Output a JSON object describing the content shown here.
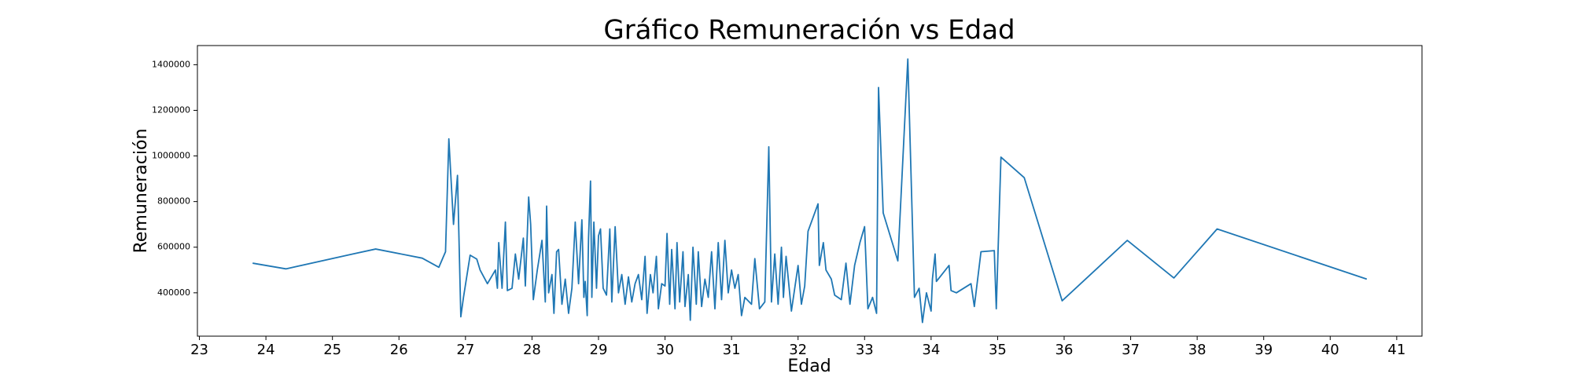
{
  "chart_data": {
    "type": "line",
    "title": "Gráfico Remuneración vs Edad",
    "x_label": "Edad",
    "y_label": "Remuneración",
    "color": "#1f77b4",
    "xlim": [
      22.97,
      41.38
    ],
    "ylim": [
      210000,
      1484000
    ],
    "xticks": [
      23,
      24,
      25,
      26,
      27,
      28,
      29,
      30,
      31,
      32,
      33,
      34,
      35,
      36,
      37,
      38,
      39,
      40,
      41
    ],
    "yticks": [
      400000,
      600000,
      800000,
      1000000,
      1200000,
      1400000
    ],
    "x": [
      23.8,
      24.3,
      25.3,
      25.65,
      26.35,
      26.6,
      26.7,
      26.75,
      26.82,
      26.88,
      26.93,
      26.97,
      27.07,
      27.17,
      27.22,
      27.33,
      27.45,
      27.48,
      27.5,
      27.55,
      27.6,
      27.63,
      27.7,
      27.75,
      27.8,
      27.87,
      27.9,
      27.95,
      27.98,
      28.02,
      28.08,
      28.15,
      28.2,
      28.22,
      28.25,
      28.3,
      28.33,
      28.37,
      28.4,
      28.45,
      28.5,
      28.55,
      28.6,
      28.65,
      28.7,
      28.75,
      28.78,
      28.8,
      28.83,
      28.85,
      28.88,
      28.9,
      28.93,
      28.97,
      29.0,
      29.03,
      29.07,
      29.12,
      29.17,
      29.2,
      29.25,
      29.3,
      29.35,
      29.4,
      29.45,
      29.5,
      29.55,
      29.6,
      29.65,
      29.7,
      29.73,
      29.78,
      29.82,
      29.87,
      29.9,
      29.95,
      30.0,
      30.03,
      30.07,
      30.1,
      30.15,
      30.18,
      30.22,
      30.27,
      30.3,
      30.35,
      30.38,
      30.42,
      30.47,
      30.5,
      30.55,
      30.6,
      30.65,
      30.7,
      30.75,
      30.8,
      30.85,
      30.9,
      30.95,
      31.0,
      31.05,
      31.1,
      31.15,
      31.2,
      31.3,
      31.35,
      31.42,
      31.5,
      31.56,
      31.6,
      31.65,
      31.7,
      31.75,
      31.78,
      31.82,
      31.9,
      32.0,
      32.05,
      32.1,
      32.15,
      32.3,
      32.32,
      32.38,
      32.42,
      32.5,
      32.55,
      32.65,
      32.72,
      32.78,
      32.85,
      32.93,
      33.0,
      33.05,
      33.12,
      33.18,
      33.21,
      33.28,
      33.5,
      33.65,
      33.75,
      33.82,
      33.87,
      33.93,
      34.0,
      34.02,
      34.06,
      34.08,
      34.27,
      34.3,
      34.38,
      34.6,
      34.65,
      34.75,
      34.95,
      34.98,
      35.05,
      35.4,
      35.97,
      36.95,
      37.65,
      38.3,
      40.55
    ],
    "values": [
      530000,
      505000,
      570000,
      592000,
      552000,
      512000,
      580000,
      1075000,
      700000,
      915000,
      295000,
      380000,
      565000,
      548000,
      500000,
      440000,
      500000,
      420000,
      620000,
      420000,
      710000,
      410000,
      420000,
      570000,
      460000,
      640000,
      430000,
      820000,
      700000,
      370000,
      500000,
      630000,
      360000,
      780000,
      400000,
      480000,
      310000,
      580000,
      590000,
      350000,
      460000,
      310000,
      420000,
      710000,
      440000,
      720000,
      380000,
      450000,
      300000,
      640000,
      890000,
      380000,
      710000,
      420000,
      650000,
      680000,
      420000,
      390000,
      680000,
      360000,
      690000,
      400000,
      480000,
      350000,
      470000,
      360000,
      440000,
      480000,
      370000,
      560000,
      310000,
      480000,
      400000,
      560000,
      330000,
      440000,
      430000,
      660000,
      350000,
      590000,
      330000,
      620000,
      360000,
      580000,
      340000,
      480000,
      280000,
      600000,
      350000,
      580000,
      340000,
      460000,
      380000,
      580000,
      330000,
      620000,
      370000,
      630000,
      400000,
      500000,
      420000,
      480000,
      300000,
      380000,
      350000,
      550000,
      330000,
      360000,
      1040000,
      360000,
      570000,
      350000,
      600000,
      380000,
      560000,
      320000,
      520000,
      350000,
      430000,
      670000,
      790000,
      520000,
      620000,
      500000,
      460000,
      390000,
      370000,
      530000,
      350000,
      520000,
      620000,
      690000,
      330000,
      380000,
      310000,
      1300000,
      750000,
      540000,
      1425000,
      380000,
      420000,
      270000,
      400000,
      320000,
      460000,
      570000,
      450000,
      520000,
      410000,
      400000,
      440000,
      340000,
      580000,
      585000,
      330000,
      995000,
      905000,
      365000,
      630000,
      465000,
      680000,
      460000
    ]
  }
}
